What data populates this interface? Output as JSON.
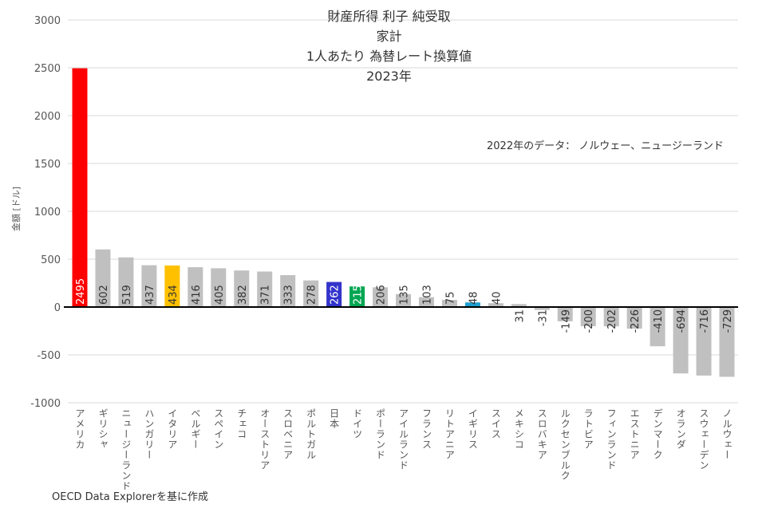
{
  "chart_data": {
    "type": "bar",
    "title": [
      "財産所得 利子 純受取",
      "家計",
      "1人あたり 為替レート換算値",
      "2023年"
    ],
    "ylabel": "金額 [ドル]",
    "xlabel": "",
    "ylim": [
      -1000,
      3000
    ],
    "yticks": [
      3000,
      2500,
      2000,
      1500,
      1000,
      500,
      0,
      -500,
      -1000
    ],
    "grid": true,
    "categories": [
      "アメリカ",
      "ギリシャ",
      "ニュージーランド",
      "ハンガリー",
      "イタリア",
      "ベルギー",
      "スペイン",
      "チェコ",
      "オーストリア",
      "スロベニア",
      "ポルトガル",
      "日本",
      "ドイツ",
      "ポーランド",
      "アイルランド",
      "フランス",
      "リトアニア",
      "イギリス",
      "スイス",
      "メキシコ",
      "スロバキア",
      "ルクセンブルク",
      "ラトビア",
      "フィンランド",
      "エストニア",
      "デンマーク",
      "オランダ",
      "スウェーデン",
      "ノルウェー"
    ],
    "values": [
      2495,
      602,
      519,
      437,
      434,
      416,
      405,
      382,
      371,
      333,
      278,
      262,
      215,
      206,
      135,
      103,
      75,
      48,
      40,
      31,
      -31,
      -149,
      -200,
      -202,
      -226,
      -410,
      -694,
      -716,
      -729
    ],
    "highlight_colors": {
      "アメリカ": "#ff0000",
      "イタリア": "#ffc000",
      "日本": "#3333cc",
      "ドイツ": "#00a651",
      "イギリス": "#1ea0d0"
    },
    "default_color": "#c0c0c0",
    "note": "2022年のデータ： ノルウェー、ニュージーランド",
    "source": "OECD Data Explorerを基に作成"
  }
}
